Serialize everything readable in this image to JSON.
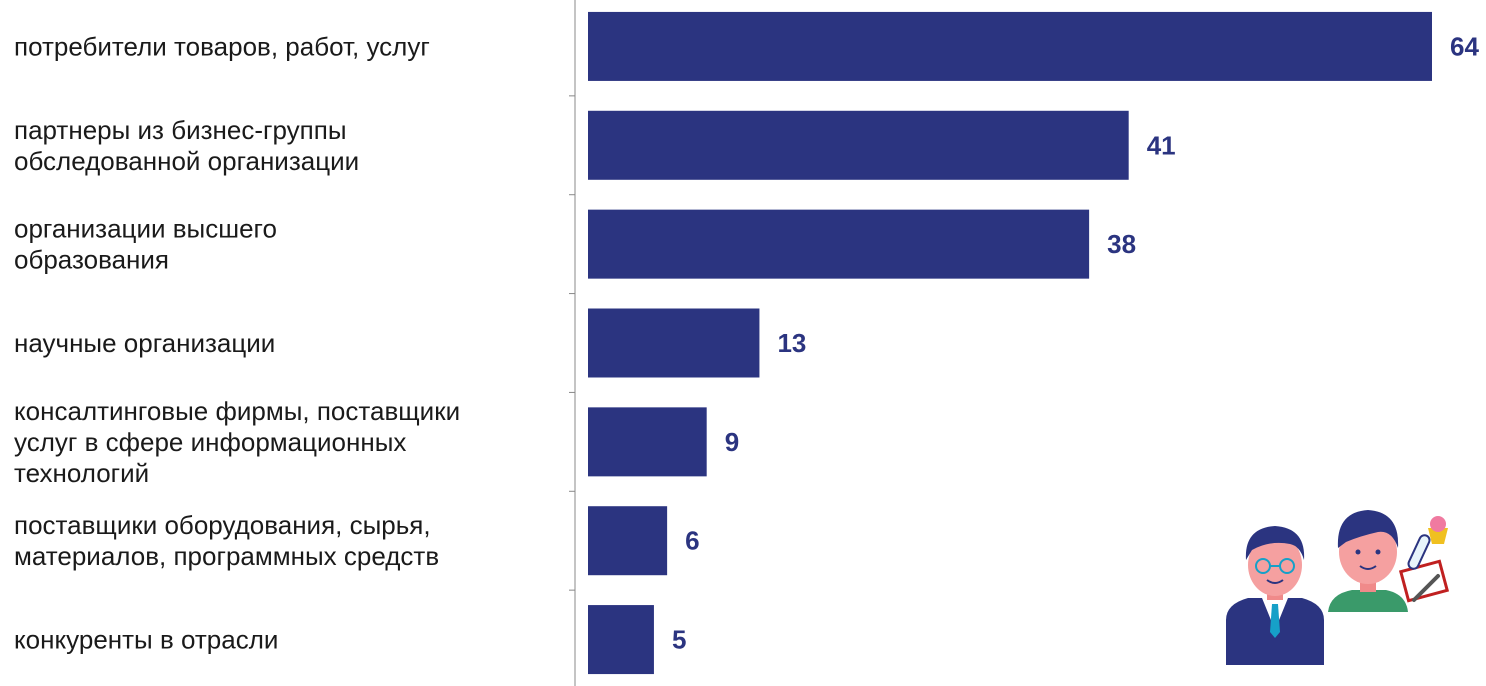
{
  "chart_data": {
    "type": "bar",
    "orientation": "horizontal",
    "categories": [
      [
        "потребители товаров, работ, услуг"
      ],
      [
        "партнеры из бизнес-группы",
        "обследованной организации"
      ],
      [
        "организации высшего",
        "образования"
      ],
      [
        "научные организации"
      ],
      [
        "консалтинговые фирмы, поставщики",
        "услуг в сфере информационных",
        "технологий"
      ],
      [
        "поставщики оборудования, сырья,",
        "материалов, программных средств"
      ],
      [
        "конкуренты в отрасли"
      ]
    ],
    "values": [
      64,
      41,
      38,
      13,
      9,
      6,
      5
    ],
    "data_labels": [
      "64",
      "41",
      "38",
      "13",
      "9",
      "6",
      "5"
    ],
    "xlim": [
      0,
      64
    ],
    "grid": false,
    "legend": "none",
    "colors": {
      "bar": "#2b3480",
      "value_label": "#2b3480",
      "axis": "#888888"
    }
  },
  "illustration": {
    "icon": "people-researchers-icon"
  }
}
